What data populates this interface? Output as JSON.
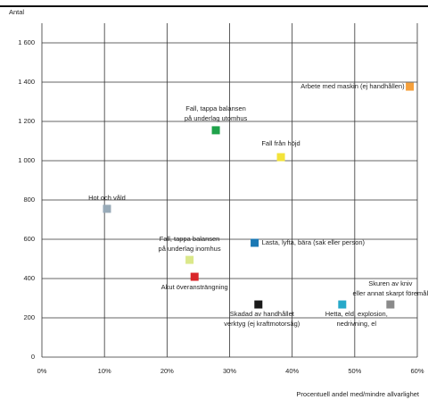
{
  "chart_data": {
    "type": "scatter",
    "y_label": "Antal",
    "x_label": "Procentuell andel med/mindre allvarlighet",
    "xlim": [
      0,
      60
    ],
    "ylim": [
      0,
      1700
    ],
    "xticks": [
      {
        "value": 0,
        "label": "0%"
      },
      {
        "value": 10,
        "label": "10%"
      },
      {
        "value": 20,
        "label": "20%"
      },
      {
        "value": 30,
        "label": "30%"
      },
      {
        "value": 40,
        "label": "40%"
      },
      {
        "value": 50,
        "label": "50%"
      },
      {
        "value": 60,
        "label": "60%"
      }
    ],
    "yticks": [
      0,
      200,
      400,
      600,
      800,
      {
        "value": 1000,
        "label": "1 000"
      },
      {
        "value": 1200,
        "label": "1 200"
      },
      {
        "value": 1400,
        "label": "1 400"
      },
      {
        "value": 1600,
        "label": "1 600"
      }
    ],
    "grid": true,
    "points": [
      {
        "label": [
          "Arbete med maskin (ej handhållen)"
        ],
        "x": 58.8,
        "y": 1377,
        "color": "#f5a03c"
      },
      {
        "label": [
          "Fall, tappa balansen",
          "på underlag utomhus"
        ],
        "x": 27.8,
        "y": 1155,
        "color": "#1fa24a"
      },
      {
        "label": [
          "Fall från höjd"
        ],
        "x": 38.2,
        "y": 1018,
        "color": "#f3e33a"
      },
      {
        "label": [
          "Hot och våld"
        ],
        "x": 10.4,
        "y": 755,
        "color": "#98aab8"
      },
      {
        "label": [
          "Lasta, lyfta, bära (sak eller person)"
        ],
        "x": 34,
        "y": 582,
        "color": "#1a78b4"
      },
      {
        "label": [
          "Fall, tappa balansen",
          "på underlag inomhus"
        ],
        "x": 23.6,
        "y": 495,
        "color": "#dbe88a"
      },
      {
        "label": [
          "Akut överansträngning"
        ],
        "x": 24.4,
        "y": 409,
        "color": "#d9262a"
      },
      {
        "label": [
          "Skadad av handhållet",
          "verktyg (ej kraftmotorsåg)"
        ],
        "x": 34.6,
        "y": 268,
        "color": "#1a1a1a"
      },
      {
        "label": [
          "Hetta, eld, explosion,",
          "nedrivning, el"
        ],
        "x": 48,
        "y": 268,
        "color": "#27a9c9"
      },
      {
        "label": [
          "Skuren av kniv",
          "eller annat skarpt föremål"
        ],
        "x": 55.7,
        "y": 268,
        "color": "#8a8a8a"
      }
    ]
  }
}
